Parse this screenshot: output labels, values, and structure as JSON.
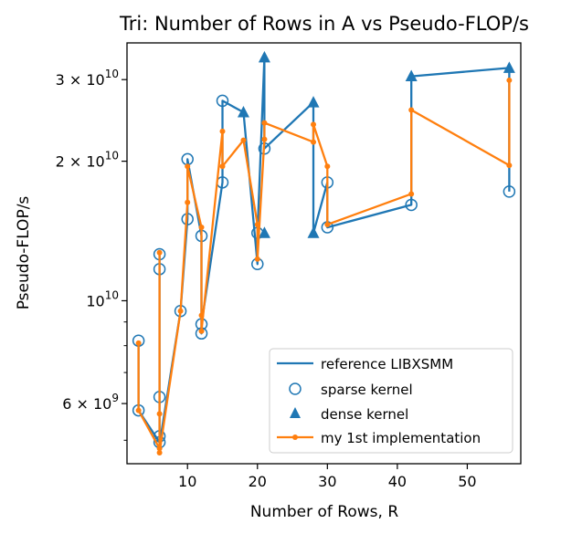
{
  "chart_data": {
    "type": "line",
    "title": "Tri: Number of Rows in A vs Pseudo-FLOP/s",
    "xlabel": "Number of Rows, R",
    "ylabel": "Pseudo-FLOP/s",
    "xlim": [
      1.35,
      57.65
    ],
    "ylim": [
      4450000000.0,
      36000000000.0
    ],
    "yscale": "log",
    "x_ticks": [
      10,
      20,
      30,
      40,
      50
    ],
    "x_tick_labels": [
      "10",
      "20",
      "30",
      "40",
      "50"
    ],
    "y_ticks": [
      6000000000.0,
      10000000000.0,
      20000000000.0,
      30000000000.0
    ],
    "y_tick_labels": [
      "6 × 10^9",
      "10^10",
      "2 × 10^10",
      "3 × 10^10"
    ],
    "legend_position": "lower-right",
    "series": [
      {
        "name": "reference LIBXSMM",
        "color": "#1f77b4",
        "style": "line",
        "points": [
          [
            3,
            8200000000.0
          ],
          [
            3,
            5800000000.0
          ],
          [
            6,
            4950000000.0
          ],
          [
            6,
            5100000000.0
          ],
          [
            6,
            6200000000.0
          ],
          [
            6,
            11700000000.0
          ],
          [
            6,
            12600000000.0
          ],
          [
            6,
            4900000000.0
          ],
          [
            9,
            9500000000.0
          ],
          [
            10,
            15000000000.0
          ],
          [
            10,
            20200000000.0
          ],
          [
            12,
            13800000000.0
          ],
          [
            12,
            8500000000.0
          ],
          [
            12,
            8900000000.0
          ],
          [
            15,
            18000000000.0
          ],
          [
            15,
            27000000000.0
          ],
          [
            18,
            25500000000.0
          ],
          [
            20,
            12000000000.0
          ],
          [
            20,
            14000000000.0
          ],
          [
            21,
            33500000000.0
          ],
          [
            21,
            21300000000.0
          ],
          [
            28,
            26800000000.0
          ],
          [
            28,
            14000000000.0
          ],
          [
            30,
            18000000000.0
          ],
          [
            30,
            14400000000.0
          ],
          [
            42,
            16100000000.0
          ],
          [
            42,
            30500000000.0
          ],
          [
            56,
            31800000000.0
          ],
          [
            56,
            17200000000.0
          ]
        ]
      },
      {
        "name": "sparse kernel",
        "color": "#1f77b4",
        "style": "open-circle",
        "points": [
          [
            3,
            8200000000.0
          ],
          [
            3,
            5800000000.0
          ],
          [
            6,
            4950000000.0
          ],
          [
            6,
            5100000000.0
          ],
          [
            6,
            6200000000.0
          ],
          [
            6,
            11700000000.0
          ],
          [
            6,
            12600000000.0
          ],
          [
            9,
            9500000000.0
          ],
          [
            10,
            15000000000.0
          ],
          [
            10,
            20200000000.0
          ],
          [
            12,
            13800000000.0
          ],
          [
            12,
            8500000000.0
          ],
          [
            12,
            8900000000.0
          ],
          [
            15,
            18000000000.0
          ],
          [
            15,
            27000000000.0
          ],
          [
            20,
            12000000000.0
          ],
          [
            20,
            14000000000.0
          ],
          [
            21,
            21300000000.0
          ],
          [
            30,
            18000000000.0
          ],
          [
            30,
            14400000000.0
          ],
          [
            42,
            16100000000.0
          ],
          [
            56,
            17200000000.0
          ]
        ]
      },
      {
        "name": "dense kernel",
        "color": "#1f77b4",
        "style": "filled-triangle",
        "points": [
          [
            18,
            25500000000.0
          ],
          [
            21,
            33500000000.0
          ],
          [
            21,
            14000000000.0
          ],
          [
            28,
            26800000000.0
          ],
          [
            28,
            14000000000.0
          ],
          [
            42,
            30500000000.0
          ],
          [
            56,
            31800000000.0
          ]
        ]
      },
      {
        "name": "my 1st implementation",
        "color": "#ff7f0e",
        "style": "line-dot",
        "points": [
          [
            3,
            8100000000.0
          ],
          [
            3,
            5800000000.0
          ],
          [
            6,
            4800000000.0
          ],
          [
            6,
            5700000000.0
          ],
          [
            6,
            12700000000.0
          ],
          [
            6,
            4700000000.0
          ],
          [
            9,
            9500000000.0
          ],
          [
            10,
            16300000000.0
          ],
          [
            10,
            19500000000.0
          ],
          [
            12,
            14400000000.0
          ],
          [
            12,
            9300000000.0
          ],
          [
            12,
            8600000000.0
          ],
          [
            15,
            23200000000.0
          ],
          [
            15,
            19500000000.0
          ],
          [
            18,
            22200000000.0
          ],
          [
            20,
            14600000000.0
          ],
          [
            20,
            12300000000.0
          ],
          [
            21,
            22300000000.0
          ],
          [
            21,
            24200000000.0
          ],
          [
            28,
            22000000000.0
          ],
          [
            28,
            24000000000.0
          ],
          [
            30,
            19500000000.0
          ],
          [
            30,
            14600000000.0
          ],
          [
            42,
            17000000000.0
          ],
          [
            42,
            25800000000.0
          ],
          [
            56,
            19600000000.0
          ],
          [
            56,
            29900000000.0
          ]
        ]
      }
    ]
  },
  "colors": {
    "blue": "#1f77b4",
    "orange": "#ff7f0e"
  }
}
